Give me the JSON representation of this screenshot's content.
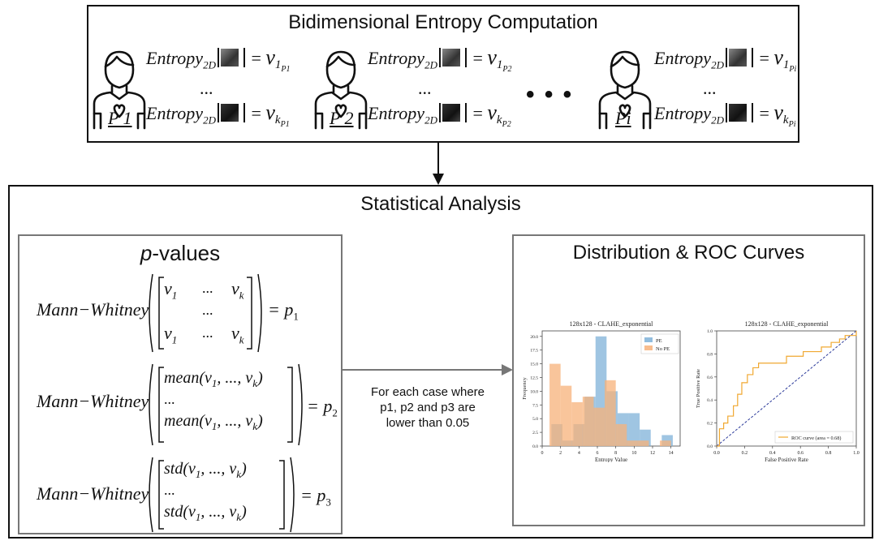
{
  "top": {
    "title": "Bidimensional Entropy Computation",
    "patients": [
      {
        "label": "P 1",
        "eq_top_lhs": "Entropy",
        "eq_sub": "2D",
        "eq_top_rhs_v": "v",
        "eq_top_idx": "1",
        "eq_top_psub": "P1",
        "eq_bot_idx": "k",
        "eq_bot_psub": "P1"
      },
      {
        "label": "P 2",
        "eq_top_lhs": "Entropy",
        "eq_sub": "2D",
        "eq_top_rhs_v": "v",
        "eq_top_idx": "1",
        "eq_top_psub": "P2",
        "eq_bot_idx": "k",
        "eq_bot_psub": "P2"
      },
      {
        "label": "Pi",
        "eq_top_lhs": "Entropy",
        "eq_sub": "2D",
        "eq_top_rhs_v": "v",
        "eq_top_idx": "1",
        "eq_top_psub": "Pi",
        "eq_bot_idx": "k",
        "eq_bot_psub": "Pi"
      }
    ],
    "small_ellipsis": "...",
    "big_ellipsis": "• • •"
  },
  "stat": {
    "title": "Statistical Analysis",
    "pvalues_title_italic": "p",
    "pvalues_title_rest": "-values",
    "mw": "Mann−Whitney",
    "p1": "p",
    "p1_sub": "1",
    "p2_sub": "2",
    "p3_sub": "3",
    "mean": "mean",
    "std": "std",
    "ellipsis": "...",
    "connector_text": [
      "For each case where",
      "p1, p2 and p3 are",
      "lower than 0.05"
    ],
    "roc_title": "Distribution & ROC Curves"
  },
  "chart_data": [
    {
      "type": "bar",
      "title": "128x128 - CLAHE_exponential",
      "xlabel": "Entropy Value",
      "ylabel": "Frequency",
      "x_ticks": [
        "0",
        "2",
        "4",
        "6",
        "8",
        "10",
        "12",
        "14"
      ],
      "y_ticks": [
        "0.0",
        "2.5",
        "5.0",
        "7.5",
        "10.0",
        "12.5",
        "15.0",
        "17.5",
        "20.0"
      ],
      "xlim": [
        0,
        15
      ],
      "ylim": [
        0,
        21
      ],
      "legend": [
        "PE",
        "No PE"
      ],
      "legend_position": "top-right",
      "colors": {
        "PE": "#7fb1d8",
        "No PE": "#f7b27a",
        "overlap": "#b4967a"
      },
      "series": [
        {
          "name": "PE",
          "bins": [
            [
              1,
              2.2
            ],
            [
              2.2,
              3.4
            ],
            [
              3.4,
              4.6
            ],
            [
              4.6,
              5.8
            ],
            [
              5.8,
              7.0
            ],
            [
              7.0,
              8.2
            ],
            [
              8.2,
              9.4
            ],
            [
              9.4,
              10.6
            ],
            [
              10.6,
              11.8
            ],
            [
              11.8,
              13.0
            ],
            [
              13.0,
              14.2
            ]
          ],
          "values": [
            4,
            1,
            4,
            9,
            20,
            10,
            6,
            6,
            3,
            0,
            2
          ]
        },
        {
          "name": "No PE",
          "bins": [
            [
              0.8,
              2.0
            ],
            [
              2.0,
              3.2
            ],
            [
              3.2,
              4.4
            ],
            [
              4.4,
              5.6
            ],
            [
              5.6,
              6.8
            ],
            [
              6.8,
              8.0
            ],
            [
              8.0,
              9.2
            ],
            [
              9.2,
              10.4
            ],
            [
              10.4,
              11.6
            ],
            [
              11.6,
              12.8
            ],
            [
              12.8,
              14.0
            ]
          ],
          "values": [
            15,
            11,
            8,
            9,
            7,
            12,
            4,
            1,
            1,
            0,
            1
          ]
        }
      ]
    },
    {
      "type": "line",
      "title": "128x128 - CLAHE_exponential",
      "xlabel": "False Positive Rate",
      "ylabel": "True Positive Rate",
      "x_ticks": [
        "0.0",
        "0.2",
        "0.4",
        "0.6",
        "0.8",
        "1.0"
      ],
      "y_ticks": [
        "0.0",
        "0.2",
        "0.4",
        "0.6",
        "0.8",
        "1.0"
      ],
      "xlim": [
        0,
        1
      ],
      "ylim": [
        0,
        1
      ],
      "legend": [
        "ROC curve (area = 0.68)"
      ],
      "legend_position": "bottom-right",
      "colors": {
        "roc": "#f0a830",
        "diag": "#2b3a9a"
      },
      "series": [
        {
          "name": "ROC curve (area = 0.68)",
          "x": [
            0.0,
            0.02,
            0.02,
            0.05,
            0.05,
            0.08,
            0.08,
            0.12,
            0.12,
            0.15,
            0.15,
            0.18,
            0.18,
            0.22,
            0.22,
            0.26,
            0.26,
            0.3,
            0.3,
            0.5,
            0.5,
            0.62,
            0.62,
            0.75,
            0.75,
            0.82,
            0.82,
            0.88,
            0.88,
            0.92,
            0.92,
            1.0,
            1.0
          ],
          "y": [
            0.0,
            0.0,
            0.15,
            0.15,
            0.2,
            0.2,
            0.26,
            0.26,
            0.35,
            0.35,
            0.45,
            0.45,
            0.55,
            0.55,
            0.62,
            0.62,
            0.68,
            0.68,
            0.72,
            0.72,
            0.78,
            0.78,
            0.82,
            0.82,
            0.86,
            0.86,
            0.9,
            0.9,
            0.93,
            0.93,
            0.96,
            0.96,
            1.0
          ]
        }
      ],
      "diagonal": {
        "x": [
          0,
          1
        ],
        "y": [
          0,
          1
        ]
      }
    }
  ]
}
